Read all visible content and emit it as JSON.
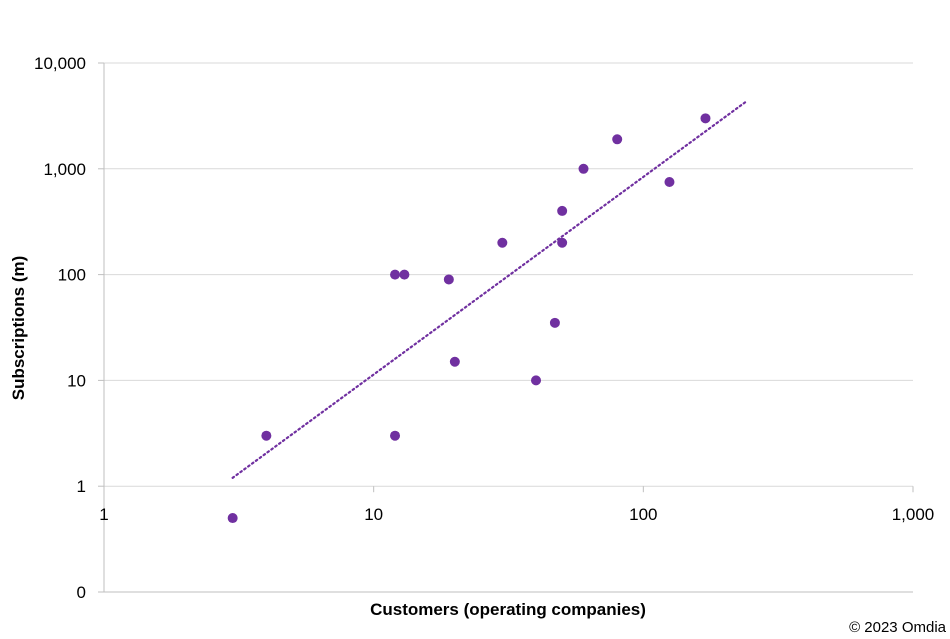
{
  "chart_data": {
    "type": "scatter",
    "x_scale": "log",
    "y_scale": "log",
    "xlabel": "Customers (operating companies)",
    "ylabel": "Subscriptions (m)",
    "xlim": [
      1,
      1000
    ],
    "ylim": [
      0.1,
      10000
    ],
    "x_ticks": [
      1,
      10,
      100,
      1000
    ],
    "x_tick_labels": [
      "1",
      "10",
      "100",
      "1,000"
    ],
    "y_ticks": [
      0.1,
      1,
      10,
      100,
      1000,
      10000
    ],
    "y_tick_labels": [
      "0",
      "1",
      "10",
      "100",
      "1,000",
      "10,000"
    ],
    "grid": "horizontal",
    "colors": {
      "points": "#7030a0",
      "trendline": "#7030a0",
      "grid": "#d9d9d9",
      "axis": "#bfbfbf"
    },
    "points": [
      {
        "x": 3,
        "y": 0.5
      },
      {
        "x": 4,
        "y": 3
      },
      {
        "x": 12,
        "y": 3
      },
      {
        "x": 12,
        "y": 100
      },
      {
        "x": 13,
        "y": 100
      },
      {
        "x": 19,
        "y": 90
      },
      {
        "x": 20,
        "y": 15
      },
      {
        "x": 30,
        "y": 200
      },
      {
        "x": 40,
        "y": 10
      },
      {
        "x": 47,
        "y": 35
      },
      {
        "x": 50,
        "y": 400
      },
      {
        "x": 50,
        "y": 200
      },
      {
        "x": 60,
        "y": 1000
      },
      {
        "x": 80,
        "y": 1900
      },
      {
        "x": 125,
        "y": 750
      },
      {
        "x": 170,
        "y": 3000
      }
    ],
    "trendline": {
      "type": "power",
      "style": "dotted",
      "points": [
        {
          "x": 3,
          "y": 1.2
        },
        {
          "x": 240,
          "y": 4300
        }
      ]
    }
  },
  "footer": {
    "copyright": "© 2023 Omdia"
  }
}
